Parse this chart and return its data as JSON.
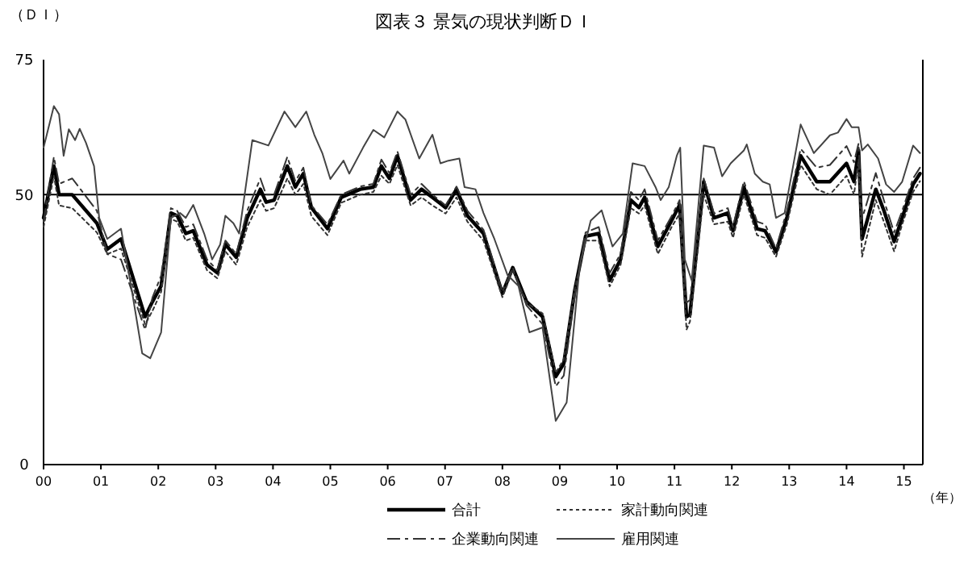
{
  "chart_data": {
    "type": "line",
    "title": "図表３ 景気の現状判断ＤＩ",
    "ylabel": "（ＤＩ）",
    "xlabel": "（年）",
    "xlim": [
      2000,
      2015.33
    ],
    "xticks": [
      {
        "value": 2000,
        "label": "00"
      },
      {
        "value": 2001,
        "label": "01"
      },
      {
        "value": 2002,
        "label": "02"
      },
      {
        "value": 2003,
        "label": "03"
      },
      {
        "value": 2004,
        "label": "04"
      },
      {
        "value": 2005,
        "label": "05"
      },
      {
        "value": 2006,
        "label": "06"
      },
      {
        "value": 2007,
        "label": "07"
      },
      {
        "value": 2008,
        "label": "08"
      },
      {
        "value": 2009,
        "label": "09"
      },
      {
        "value": 2010,
        "label": "10"
      },
      {
        "value": 2011,
        "label": "11"
      },
      {
        "value": 2012,
        "label": "12"
      },
      {
        "value": 2013,
        "label": "13"
      },
      {
        "value": 2014,
        "label": "14"
      },
      {
        "value": 2015,
        "label": "15"
      }
    ],
    "ylim": [
      0,
      75
    ],
    "yticks": [
      0,
      50,
      75
    ],
    "grid": false,
    "legend": "bottom",
    "marker": "none",
    "ref_lines": [
      {
        "axis": "y",
        "value": 50,
        "color": "#000000"
      }
    ],
    "series": [
      {
        "name": "合計",
        "color": "#000000",
        "line_style": "solid",
        "x": [
          2000.0,
          2000.18,
          2000.27,
          2000.5,
          2000.93,
          2001.11,
          2001.35,
          2001.77,
          2001.9,
          2002.05,
          2002.22,
          2002.33,
          2002.48,
          2002.61,
          2002.85,
          2003.03,
          2003.17,
          2003.36,
          2003.55,
          2003.78,
          2003.88,
          2004.02,
          2004.25,
          2004.39,
          2004.53,
          2004.67,
          2004.95,
          2005.19,
          2005.52,
          2005.75,
          2005.89,
          2006.03,
          2006.17,
          2006.4,
          2006.59,
          2006.78,
          2007.01,
          2007.2,
          2007.39,
          2007.67,
          2008.0,
          2008.18,
          2008.42,
          2008.7,
          2008.93,
          2009.07,
          2009.26,
          2009.45,
          2009.68,
          2009.87,
          2010.06,
          2010.24,
          2010.38,
          2010.48,
          2010.71,
          2010.95,
          2011.09,
          2011.21,
          2011.27,
          2011.51,
          2011.69,
          2011.93,
          2012.02,
          2012.21,
          2012.44,
          2012.58,
          2012.77,
          2012.96,
          2013.2,
          2013.48,
          2013.71,
          2014.0,
          2014.13,
          2014.21,
          2014.27,
          2014.51,
          2014.65,
          2014.83,
          2014.97,
          2015.16,
          2015.28
        ],
        "values": [
          45.7,
          55.3,
          50,
          50,
          44.7,
          39.9,
          41.8,
          27.4,
          30.2,
          33.1,
          46.6,
          46.1,
          42.8,
          43.3,
          37,
          35.5,
          40.8,
          38.4,
          45.7,
          51,
          48.6,
          49,
          55.3,
          51.4,
          53.9,
          47.6,
          43.7,
          49.5,
          51,
          51.4,
          55.3,
          53,
          57.2,
          49,
          51,
          49.5,
          47.6,
          51,
          46.1,
          42.8,
          31.7,
          36.5,
          30.2,
          27.4,
          16.3,
          18.7,
          32.2,
          42.3,
          42.8,
          34.1,
          38,
          49,
          47.6,
          49.5,
          40.4,
          45.2,
          48.1,
          27.4,
          27.8,
          52.4,
          45.7,
          46.6,
          43.3,
          51.4,
          43.7,
          43.3,
          39.4,
          45.7,
          57.2,
          52.4,
          52.4,
          55.8,
          52.4,
          58.2,
          41.8,
          51,
          47.1,
          41.3,
          45.7,
          51.9,
          53.9
        ]
      },
      {
        "name": "家計動向関連",
        "color": "#333333",
        "line_style": "dotted",
        "x": [
          2000.0,
          2000.18,
          2000.27,
          2000.5,
          2000.93,
          2001.11,
          2001.35,
          2001.77,
          2001.9,
          2002.05,
          2002.22,
          2002.33,
          2002.48,
          2002.61,
          2002.85,
          2003.03,
          2003.17,
          2003.36,
          2003.55,
          2003.78,
          2003.88,
          2004.02,
          2004.25,
          2004.39,
          2004.53,
          2004.67,
          2004.95,
          2005.19,
          2005.52,
          2005.75,
          2005.89,
          2006.03,
          2006.17,
          2006.4,
          2006.59,
          2006.78,
          2007.01,
          2007.2,
          2007.39,
          2007.67,
          2008.0,
          2008.18,
          2008.42,
          2008.7,
          2008.93,
          2009.07,
          2009.26,
          2009.45,
          2009.68,
          2009.87,
          2010.06,
          2010.24,
          2010.38,
          2010.48,
          2010.71,
          2010.95,
          2011.09,
          2011.21,
          2011.27,
          2011.51,
          2011.69,
          2011.93,
          2012.02,
          2012.21,
          2012.44,
          2012.58,
          2012.77,
          2012.96,
          2013.2,
          2013.48,
          2013.71,
          2014.0,
          2014.13,
          2014.21,
          2014.27,
          2014.51,
          2014.65,
          2014.83,
          2014.97,
          2015.16,
          2015.28
        ],
        "values": [
          44,
          53.5,
          48,
          47.5,
          43,
          39,
          40,
          26,
          28.5,
          32,
          45.5,
          45,
          41.5,
          42,
          36,
          34.5,
          39.5,
          37,
          44,
          49,
          47,
          47.5,
          53,
          50,
          52,
          46,
          42.5,
          48.5,
          50,
          50.5,
          53.5,
          52,
          55.5,
          48,
          49.5,
          48,
          46.5,
          49.5,
          45,
          41.5,
          31,
          36,
          30,
          28,
          17,
          19.5,
          32.5,
          41.5,
          41.5,
          33,
          37,
          47.5,
          46.5,
          48,
          39,
          44,
          46.5,
          25,
          26.5,
          50,
          44.5,
          45,
          42,
          50,
          42.5,
          42,
          38.5,
          44.5,
          55.5,
          51,
          50,
          53.5,
          50,
          56.5,
          38.5,
          49,
          45,
          39.5,
          44.5,
          50.5,
          52.5
        ]
      },
      {
        "name": "企業動向関連",
        "color": "#333333",
        "line_style": "dashed",
        "x": [
          2000.0,
          2000.18,
          2000.27,
          2000.5,
          2000.93,
          2001.11,
          2001.35,
          2001.77,
          2001.9,
          2002.05,
          2002.22,
          2002.33,
          2002.48,
          2002.61,
          2002.85,
          2003.03,
          2003.17,
          2003.36,
          2003.55,
          2003.78,
          2003.88,
          2004.02,
          2004.25,
          2004.39,
          2004.53,
          2004.67,
          2004.95,
          2005.19,
          2005.52,
          2005.75,
          2005.89,
          2006.03,
          2006.17,
          2006.4,
          2006.59,
          2006.78,
          2007.01,
          2007.2,
          2007.39,
          2007.67,
          2008.0,
          2008.18,
          2008.42,
          2008.7,
          2008.93,
          2009.07,
          2009.26,
          2009.45,
          2009.68,
          2009.87,
          2010.06,
          2010.24,
          2010.38,
          2010.48,
          2010.71,
          2010.95,
          2011.09,
          2011.21,
          2011.27,
          2011.51,
          2011.69,
          2011.93,
          2012.02,
          2012.21,
          2012.44,
          2012.58,
          2012.77,
          2012.96,
          2013.2,
          2013.48,
          2013.71,
          2014.0,
          2014.13,
          2014.21,
          2014.27,
          2014.51,
          2014.65,
          2014.83,
          2014.97,
          2015.16,
          2015.28
        ],
        "values": [
          45,
          57,
          52,
          53,
          47,
          39,
          38,
          25,
          31,
          35,
          47.5,
          47,
          44,
          44.5,
          38,
          36,
          41.5,
          39,
          47,
          53,
          50,
          50,
          57,
          52.5,
          55,
          48,
          44.5,
          50,
          51.5,
          52,
          56.5,
          54,
          58,
          50,
          52,
          50,
          48,
          51.5,
          47,
          43.5,
          32,
          36.5,
          29.5,
          26,
          14.5,
          16.5,
          31,
          43,
          44,
          35.5,
          39,
          50.5,
          49,
          51,
          41.5,
          46,
          49,
          30,
          30.5,
          53,
          46.5,
          47.5,
          44,
          52.5,
          45,
          44.5,
          40,
          47,
          58.5,
          55,
          55.5,
          59,
          56,
          59.5,
          45.5,
          54,
          49,
          43,
          47,
          53,
          55
        ]
      },
      {
        "name": "雇用関連",
        "color": "#444444",
        "line_style": "solid",
        "x": [
          2000,
          2000.18,
          2000.27,
          2000.35,
          2000.44,
          2000.55,
          2000.63,
          2000.74,
          2000.88,
          2000.97,
          2001.11,
          2001.35,
          2001.54,
          2001.72,
          2001.86,
          2002.05,
          2002.22,
          2002.38,
          2002.48,
          2002.61,
          2002.8,
          2002.94,
          2003.08,
          2003.17,
          2003.31,
          2003.41,
          2003.64,
          2003.92,
          2004.2,
          2004.39,
          2004.58,
          2004.72,
          2004.86,
          2005.0,
          2005.23,
          2005.33,
          2005.57,
          2005.75,
          2005.94,
          2006.17,
          2006.31,
          2006.55,
          2006.78,
          2006.92,
          2007.06,
          2007.25,
          2007.34,
          2007.53,
          2007.67,
          2007.86,
          2008.09,
          2008.28,
          2008.47,
          2008.7,
          2008.93,
          2009.12,
          2009.35,
          2009.54,
          2009.73,
          2009.92,
          2010.1,
          2010.27,
          2010.48,
          2010.67,
          2010.76,
          2010.9,
          2011.04,
          2011.1,
          2011.18,
          2011.3,
          2011.51,
          2011.69,
          2011.83,
          2011.98,
          2012.21,
          2012.26,
          2012.4,
          2012.54,
          2012.66,
          2012.77,
          2012.92,
          2013.2,
          2013.43,
          2013.71,
          2013.85,
          2014,
          2014.09,
          2014.21,
          2014.27,
          2014.37,
          2014.55,
          2014.69,
          2014.83,
          2014.97,
          2015.16,
          2015.28
        ],
        "values": [
          58.7,
          66.4,
          64.9,
          57.2,
          62.1,
          60.1,
          62.2,
          59.6,
          55.3,
          45.7,
          41.8,
          43.7,
          32.2,
          20.6,
          19.7,
          24.5,
          45.7,
          46.6,
          45.7,
          48.1,
          42.8,
          38,
          40.8,
          46.1,
          44.7,
          42.8,
          60.1,
          59.1,
          65.4,
          62.5,
          65.4,
          61.1,
          57.7,
          52.9,
          56.3,
          53.9,
          58.7,
          62,
          60.6,
          65.4,
          63.9,
          56.7,
          61.1,
          55.8,
          56.3,
          56.7,
          51.4,
          51,
          46.6,
          41.8,
          35.1,
          33.1,
          24.5,
          25.4,
          8.1,
          11.5,
          37,
          45.2,
          47.1,
          40.4,
          42.8,
          55.8,
          55.3,
          51.4,
          49,
          51.4,
          57.2,
          58.7,
          38,
          34.1,
          59.1,
          58.7,
          53.4,
          55.8,
          58.2,
          59.3,
          53.9,
          52.4,
          51.9,
          45.7,
          46.6,
          63,
          57.7,
          61,
          61.5,
          64,
          62.5,
          62.5,
          58.2,
          59.3,
          56.7,
          51.9,
          50.5,
          52.4,
          59.1,
          57.7
        ]
      }
    ]
  }
}
